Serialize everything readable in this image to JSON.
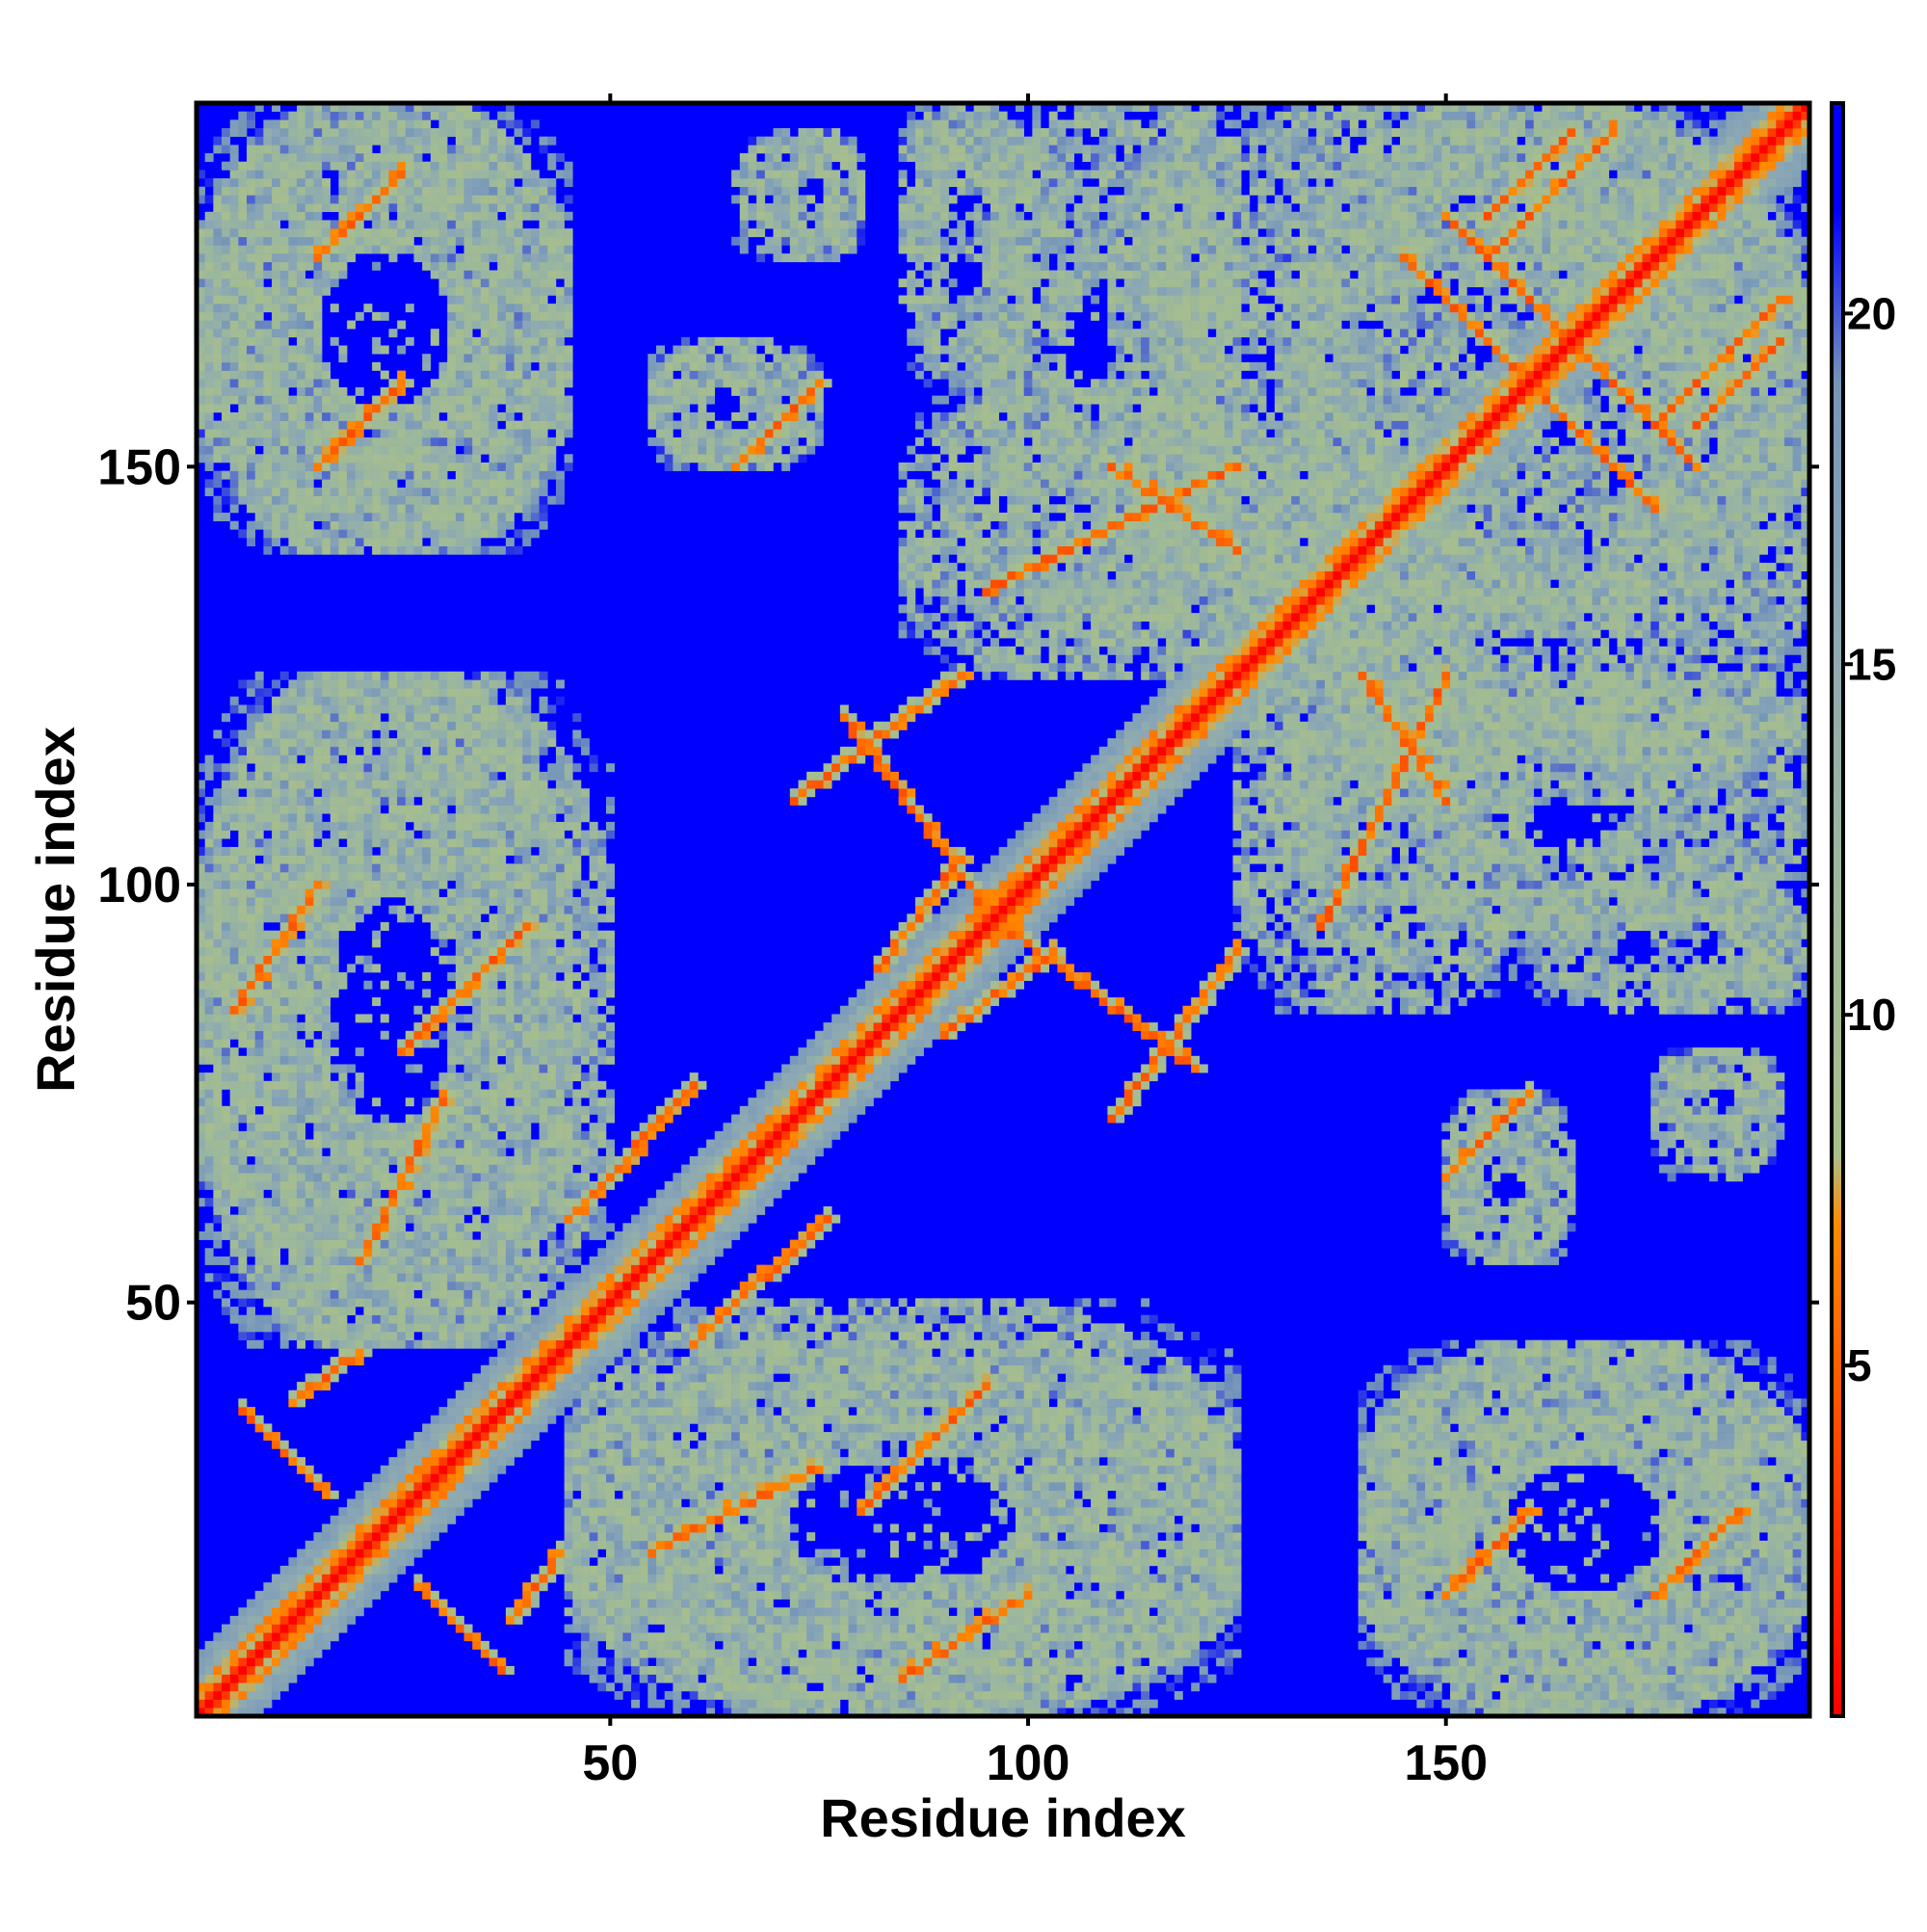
{
  "chart_data": {
    "type": "heatmap",
    "title": "",
    "xlabel": "Residue index",
    "ylabel": "Residue index",
    "n_residues": 193,
    "xlim": [
      1,
      193
    ],
    "ylim": [
      1,
      193
    ],
    "x_ticks": [
      50,
      100,
      150
    ],
    "y_ticks": [
      50,
      100,
      150
    ],
    "colorbar": {
      "range": [
        0,
        23
      ],
      "ticks": [
        5,
        10,
        15,
        20
      ],
      "stops": [
        {
          "value": 0,
          "color": "#ff0000"
        },
        {
          "value": 4,
          "color": "#ff4a00"
        },
        {
          "value": 7,
          "color": "#ff8a00"
        },
        {
          "value": 8,
          "color": "#a9bf8a"
        },
        {
          "value": 12,
          "color": "#9cb89c"
        },
        {
          "value": 16,
          "color": "#8aa6b6"
        },
        {
          "value": 19,
          "color": "#7596b8"
        },
        {
          "value": 21.5,
          "color": "#0000ff"
        },
        {
          "value": 23,
          "color": "#0000ff"
        }
      ]
    },
    "background_color": "#0000ff",
    "diagonal_color": "#ff0000",
    "contact_color": "#ff8a00",
    "neighbor_color": "#a9bf8a",
    "description_note": "Residue-residue distance map; values in Angstrom-like units saturating at ~22. Strong contacts along main diagonal and several off-diagonal bands.",
    "contact_segments": [
      {
        "i": [
          6,
          16
        ],
        "j": [
          27,
          37
        ],
        "anti": true
      },
      {
        "i": [
          12,
          20
        ],
        "j": [
          38,
          44
        ],
        "anti": false
      },
      {
        "i": [
          20,
          30
        ],
        "j": [
          55,
          75
        ],
        "anti": false
      },
      {
        "i": [
          45,
          60
        ],
        "j": [
          60,
          76
        ],
        "anti": false
      },
      {
        "i": [
          5,
          15
        ],
        "j": [
          85,
          100
        ],
        "anti": false
      },
      {
        "i": [
          25,
          40
        ],
        "j": [
          80,
          95
        ],
        "anti": false
      },
      {
        "i": [
          78,
          95
        ],
        "j": [
          97,
          120
        ],
        "anti": true
      },
      {
        "i": [
          72,
          92
        ],
        "j": [
          110,
          125
        ],
        "anti": false
      },
      {
        "i": [
          82,
          92
        ],
        "j": [
          90,
          103
        ],
        "anti": false
      },
      {
        "i": [
          95,
          125
        ],
        "j": [
          135,
          150
        ],
        "anti": false
      },
      {
        "i": [
          140,
          150
        ],
        "j": [
          110,
          125
        ],
        "anti": true
      },
      {
        "i": [
          150,
          165
        ],
        "j": [
          165,
          180
        ],
        "anti": true
      },
      {
        "i": [
          160,
          175
        ],
        "j": [
          145,
          160
        ],
        "anti": true
      },
      {
        "i": [
          155,
          165
        ],
        "j": [
          180,
          190
        ],
        "anti": false
      },
      {
        "i": [
          175,
          190
        ],
        "j": [
          155,
          170
        ],
        "anti": false
      },
      {
        "i": [
          150,
          160
        ],
        "j": [
          15,
          25
        ],
        "anti": false
      },
      {
        "i": [
          65,
          75
        ],
        "j": [
          150,
          160
        ],
        "anti": false
      },
      {
        "i": [
          15,
          25
        ],
        "j": [
          150,
          160
        ],
        "anti": false
      },
      {
        "i": [
          175,
          185
        ],
        "j": [
          15,
          25
        ],
        "anti": false
      }
    ],
    "neighbor_regions": [
      {
        "i": [
          1,
          45
        ],
        "j": [
          140,
          193
        ]
      },
      {
        "i": [
          1,
          45
        ],
        "j": [
          45,
          125
        ]
      },
      {
        "i": [
          55,
          70
        ],
        "j": [
          150,
          165
        ]
      },
      {
        "i": [
          65,
          80
        ],
        "j": [
          175,
          190
        ]
      },
      {
        "i": [
          85,
          100
        ],
        "j": [
          160,
          193
        ]
      },
      {
        "i": [
          115,
          125
        ],
        "j": [
          160,
          193
        ]
      },
      {
        "i": [
          85,
          130
        ],
        "j": [
          125,
          160
        ]
      },
      {
        "i": [
          130,
          193
        ],
        "j": [
          110,
          193
        ]
      },
      {
        "i": [
          130,
          193
        ],
        "j": [
          95,
          125
        ]
      },
      {
        "i": [
          45,
          125
        ],
        "j": [
          1,
          50
        ]
      },
      {
        "i": [
          140,
          193
        ],
        "j": [
          1,
          45
        ]
      },
      {
        "i": [
          150,
          165
        ],
        "j": [
          55,
          75
        ]
      },
      {
        "i": [
          175,
          190
        ],
        "j": [
          70,
          80
        ]
      },
      {
        "i": [
          175,
          193
        ],
        "j": [
          85,
          100
        ]
      }
    ]
  }
}
